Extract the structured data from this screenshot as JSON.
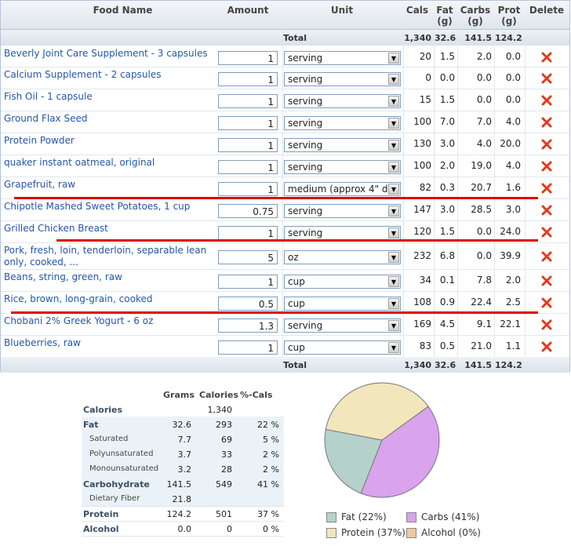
{
  "headers": {
    "food_name": "Food Name",
    "amount": "Amount",
    "unit": "Unit",
    "cals": "Cals",
    "fat": "Fat\n(g)",
    "carbs": "Carbs\n(g)",
    "prot": "Prot\n(g)",
    "delete": "Delete"
  },
  "total": {
    "label": "Total",
    "cals": "1,340",
    "fat": "32.6",
    "carbs": "141.5",
    "prot": "124.2"
  },
  "foods": [
    {
      "name": "Beverly Joint Care Supplement - 3 capsules",
      "amount": "1",
      "unit": "serving",
      "cals": "20",
      "fat": "1.5",
      "carbs": "2.0",
      "prot": "0.0"
    },
    {
      "name": "Calcium Supplement - 2 capsules",
      "amount": "1",
      "unit": "serving",
      "cals": "0",
      "fat": "0.0",
      "carbs": "0.0",
      "prot": "0.0"
    },
    {
      "name": "Fish Oil - 1 capsule",
      "amount": "1",
      "unit": "serving",
      "cals": "15",
      "fat": "1.5",
      "carbs": "0.0",
      "prot": "0.0"
    },
    {
      "name": "Ground Flax Seed",
      "amount": "1",
      "unit": "serving",
      "cals": "100",
      "fat": "7.0",
      "carbs": "7.0",
      "prot": "4.0"
    },
    {
      "name": "Protein Powder",
      "amount": "1",
      "unit": "serving",
      "cals": "130",
      "fat": "3.0",
      "carbs": "4.0",
      "prot": "20.0"
    },
    {
      "name": "quaker instant oatmeal, original",
      "amount": "1",
      "unit": "serving",
      "cals": "100",
      "fat": "2.0",
      "carbs": "19.0",
      "prot": "4.0"
    },
    {
      "name": "Grapefruit, raw",
      "amount": "1",
      "unit": "medium (approx 4\" dia",
      "cals": "82",
      "fat": "0.3",
      "carbs": "20.7",
      "prot": "1.6"
    },
    {
      "name": "Chipotle Mashed Sweet Potatoes, 1 cup",
      "amount": "0.75",
      "unit": "serving",
      "cals": "147",
      "fat": "3.0",
      "carbs": "28.5",
      "prot": "3.0"
    },
    {
      "name": "Grilled Chicken Breast",
      "amount": "1",
      "unit": "serving",
      "cals": "120",
      "fat": "1.5",
      "carbs": "0.0",
      "prot": "24.0"
    },
    {
      "name": "Pork, fresh, loin, tenderloin, separable lean only, cooked, ...",
      "amount": "5",
      "unit": "oz",
      "cals": "232",
      "fat": "6.8",
      "carbs": "0.0",
      "prot": "39.9"
    },
    {
      "name": "Beans, string, green, raw",
      "amount": "1",
      "unit": "cup",
      "cals": "34",
      "fat": "0.1",
      "carbs": "7.8",
      "prot": "2.0"
    },
    {
      "name": "Rice, brown, long-grain, cooked",
      "amount": "0.5",
      "unit": "cup",
      "cals": "108",
      "fat": "0.9",
      "carbs": "22.4",
      "prot": "2.5"
    },
    {
      "name": "Chobani 2% Greek Yogurt - 6 oz",
      "amount": "1.3",
      "unit": "serving",
      "cals": "169",
      "fat": "4.5",
      "carbs": "9.1",
      "prot": "22.1"
    },
    {
      "name": "Blueberries, raw",
      "amount": "1",
      "unit": "cup",
      "cals": "83",
      "fat": "0.5",
      "carbs": "21.0",
      "prot": "1.1"
    }
  ],
  "nutrition": {
    "headers": {
      "grams": "Grams",
      "calories": "Calories",
      "pct": "%-Cals"
    },
    "rows": [
      {
        "label": "Calories",
        "grams": "",
        "calories": "1,340",
        "pct": "",
        "style": "b"
      },
      {
        "label": "Fat",
        "grams": "32.6",
        "calories": "293",
        "pct": "22 %",
        "style": "b"
      },
      {
        "label": "Saturated",
        "grams": "7.7",
        "calories": "69",
        "pct": "5 %",
        "style": "sub"
      },
      {
        "label": "Polyunsaturated",
        "grams": "3.7",
        "calories": "33",
        "pct": "2 %",
        "style": "sub"
      },
      {
        "label": "Monounsaturated",
        "grams": "3.2",
        "calories": "28",
        "pct": "2 %",
        "style": "sub"
      },
      {
        "label": "Carbohydrate",
        "grams": "141.5",
        "calories": "549",
        "pct": "41 %",
        "style": "b"
      },
      {
        "label": "Dietary Fiber",
        "grams": "21.8",
        "calories": "",
        "pct": "",
        "style": "sub"
      },
      {
        "label": "Protein",
        "grams": "124.2",
        "calories": "501",
        "pct": "37 %",
        "style": "b"
      },
      {
        "label": "Alcohol",
        "grams": "0.0",
        "calories": "0",
        "pct": "0 %",
        "style": "b"
      }
    ]
  },
  "pie": {
    "slices": [
      {
        "name": "Fat",
        "pct": 22,
        "color": "#b5d1cc"
      },
      {
        "name": "Carbs",
        "pct": 41,
        "color": "#d9a3ee"
      },
      {
        "name": "Protein",
        "pct": 37,
        "color": "#f2e6bd"
      },
      {
        "name": "Alcohol",
        "pct": 0,
        "color": "#f0c8a0"
      }
    ],
    "legend": [
      "Fat (22%)",
      "Carbs (41%)",
      "Protein (37%)",
      "Alcohol (0%)"
    ]
  },
  "colors": {
    "link": "#2456a8",
    "delete": "#e03b1c",
    "highlight_line": "#e00000"
  }
}
